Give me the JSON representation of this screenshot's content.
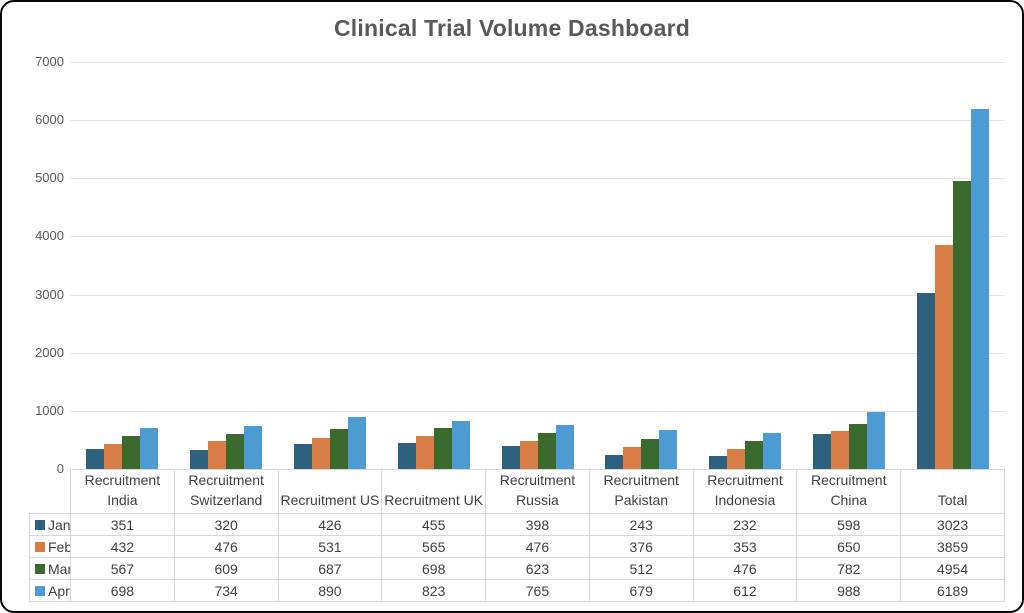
{
  "title": "Clinical Trial Volume Dashboard",
  "colors": {
    "jan": "#2E6080",
    "feb": "#D87D45",
    "mar": "#3B6A2E",
    "apr": "#4D9BD3",
    "gridline": "#E3E3E3",
    "table_border": "#D7D7D7",
    "axis_text": "#595959",
    "title_text": "#595959",
    "table_text": "#3F3F3F",
    "frame_border": "#0A0A0A"
  },
  "chart_data": {
    "type": "bar",
    "title": "Clinical Trial Volume Dashboard",
    "categories": [
      "Recruitment India",
      "Recruitment Switzerland",
      "Recruitment US",
      "Recruitment UK",
      "Recruitment Russia",
      "Recruitment Pakistan",
      "Recruitment Indonesia",
      "Recruitment China",
      "Total"
    ],
    "series": [
      {
        "name": "Jan",
        "color": "#2E6080",
        "values": [
          351,
          320,
          426,
          455,
          398,
          243,
          232,
          598,
          3023
        ]
      },
      {
        "name": "Feb",
        "color": "#D87D45",
        "values": [
          432,
          476,
          531,
          565,
          476,
          376,
          353,
          650,
          3859
        ]
      },
      {
        "name": "Mar",
        "color": "#3B6A2E",
        "values": [
          567,
          609,
          687,
          698,
          623,
          512,
          476,
          782,
          4954
        ]
      },
      {
        "name": "Apr",
        "color": "#4D9BD3",
        "values": [
          698,
          734,
          890,
          823,
          765,
          679,
          612,
          988,
          6189
        ]
      }
    ],
    "ylim": [
      0,
      7000
    ],
    "yticks": [
      0,
      1000,
      2000,
      3000,
      4000,
      5000,
      6000,
      7000
    ],
    "grid": true,
    "legend_position": "table-left",
    "data_table_shown": true
  }
}
